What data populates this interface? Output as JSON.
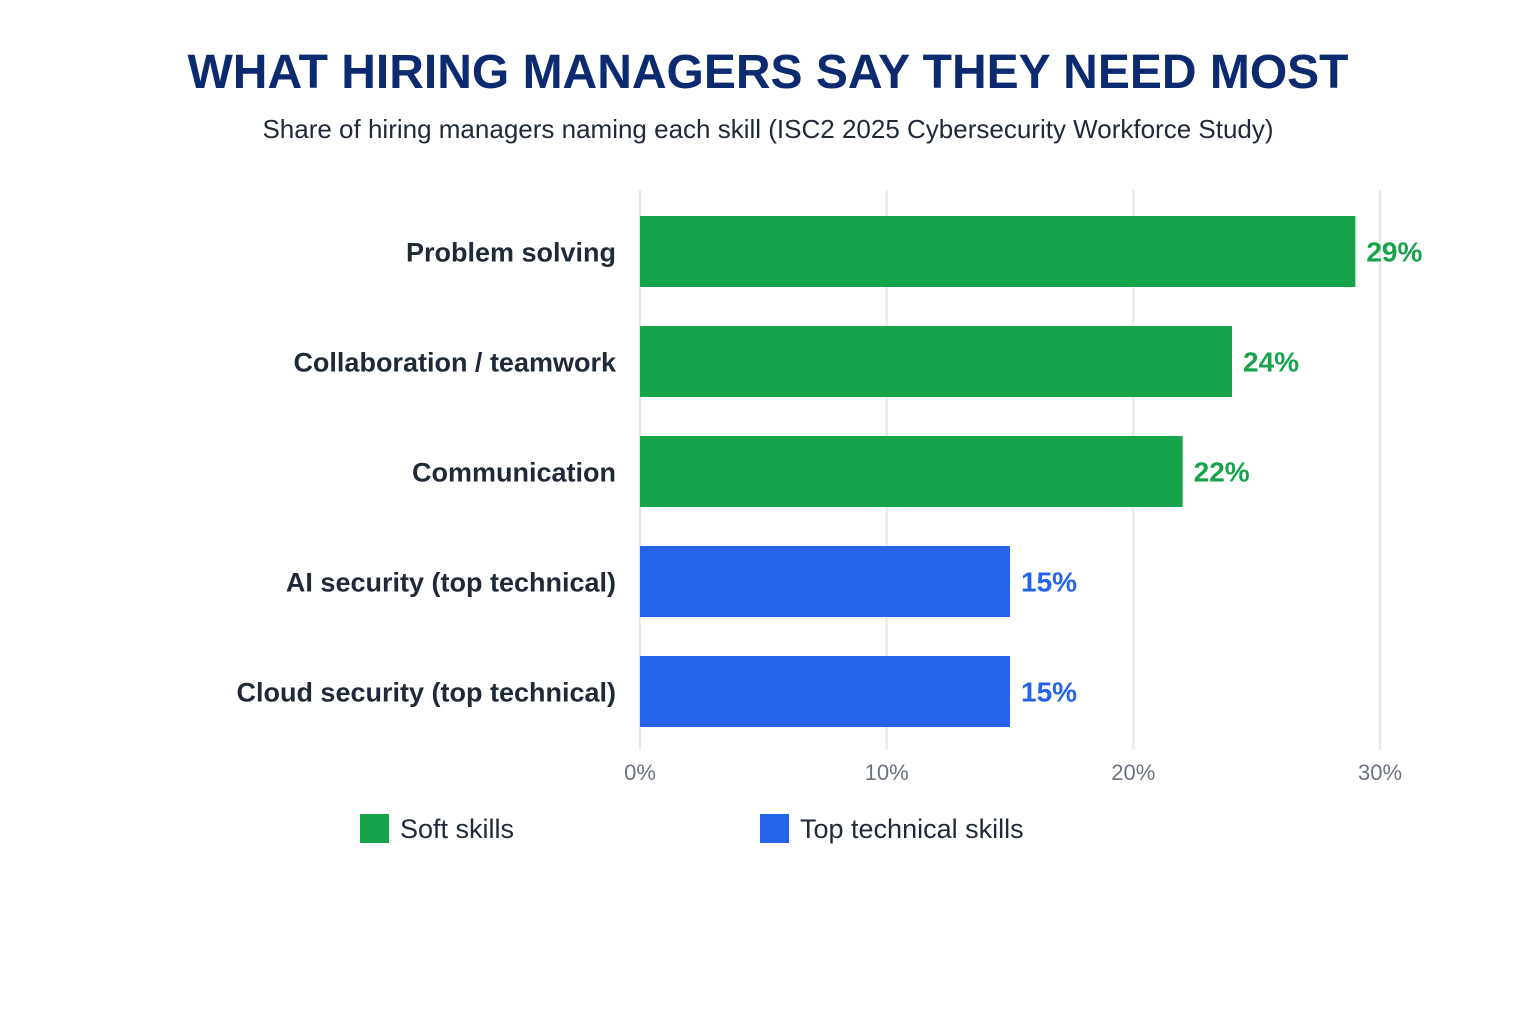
{
  "chart_data": {
    "type": "bar",
    "orientation": "horizontal",
    "title": "WHAT HIRING MANAGERS SAY THEY NEED MOST",
    "subtitle": "Share of hiring managers naming each skill (ISC2 2025 Cybersecurity Workforce Study)",
    "xlabel": "",
    "ylabel": "",
    "xlim": [
      0,
      30
    ],
    "grid": true,
    "ticks": [
      0,
      10,
      20,
      30
    ],
    "tick_labels": [
      "0%",
      "10%",
      "20%",
      "30%"
    ],
    "categories": [
      "Problem solving",
      "Collaboration / teamwork",
      "Communication",
      "AI security (top technical)",
      "Cloud security (top technical)"
    ],
    "values": [
      29,
      24,
      22,
      15,
      15
    ],
    "value_labels": [
      "29%",
      "24%",
      "22%",
      "15%",
      "15%"
    ],
    "groups": [
      "soft",
      "soft",
      "soft",
      "technical",
      "technical"
    ],
    "legend": [
      {
        "group": "soft",
        "label": "Soft skills",
        "color": "#16A34A"
      },
      {
        "group": "technical",
        "label": "Top technical skills",
        "color": "#2563EB"
      }
    ],
    "legend_position": "bottom"
  },
  "colors": {
    "title": "#0B2A6F",
    "subtitle": "#1F2937",
    "category_text": "#1F2937",
    "tick_text": "#6B7280",
    "grid": "#E5E7EB"
  }
}
